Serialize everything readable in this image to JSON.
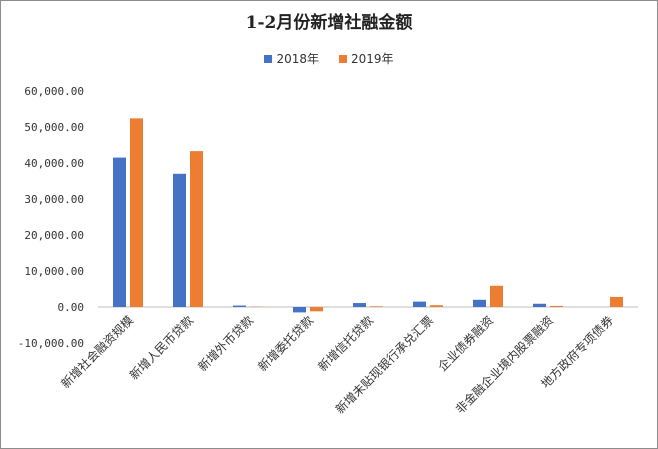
{
  "chart_data": {
    "type": "bar",
    "title": "1-2月份新增社融金额",
    "categories": [
      "新增社会融资规模",
      "新增人民币贷款",
      "新增外币贷款",
      "新增委托贷款",
      "新增信托贷款",
      "新增未贴现银行承兑汇票",
      "企业债券融资",
      "非金融企业境内股票融资",
      "地方政府专项债券"
    ],
    "series": [
      {
        "name": "2018年",
        "color": "#4472C4",
        "values": [
          41500,
          37000,
          400,
          -1500,
          1100,
          1500,
          2000,
          900,
          0
        ]
      },
      {
        "name": "2019年",
        "color": "#ED7D31",
        "values": [
          52400,
          43300,
          100,
          -1200,
          200,
          500,
          5900,
          300,
          2800
        ]
      }
    ],
    "ylim": [
      -10000,
      60000
    ],
    "yticks": [
      -10000,
      0,
      10000,
      20000,
      30000,
      40000,
      50000,
      60000
    ],
    "ytick_labels": [
      "-10,000.00",
      "0.00",
      "10,000.00",
      "20,000.00",
      "30,000.00",
      "40,000.00",
      "50,000.00",
      "60,000.00"
    ],
    "legend_position": "top",
    "grid": false
  }
}
